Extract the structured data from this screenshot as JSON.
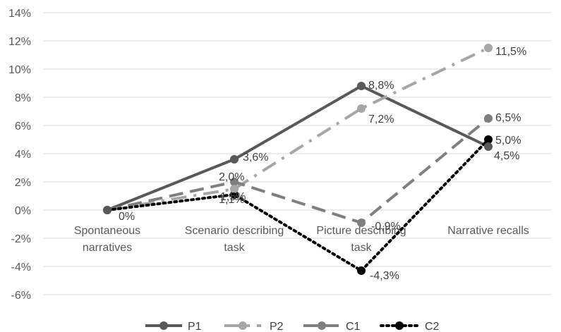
{
  "chart_data": {
    "type": "line",
    "categories": [
      [
        "Spontaneous",
        "narratives"
      ],
      [
        "Scenario describing",
        "task"
      ],
      [
        "Picture describing",
        "task"
      ],
      [
        "Narrative recalls"
      ]
    ],
    "y_ticks": [
      "14%",
      "12%",
      "10%",
      "8%",
      "6%",
      "4%",
      "2%",
      "0%",
      "-2%",
      "-4%",
      "-6%"
    ],
    "ylim": [
      -6,
      14
    ],
    "grid": true,
    "legend_position": "bottom",
    "series": [
      {
        "name": "P1",
        "values": [
          0,
          3.6,
          8.8,
          4.5
        ],
        "labels": [
          "0%",
          "3,6%",
          "8,8%",
          "4,5%"
        ],
        "color": "#595959",
        "style": "solid"
      },
      {
        "name": "P2",
        "values": [
          0,
          1.5,
          7.2,
          11.5
        ],
        "labels": [
          "",
          "1,5%",
          "7,2%",
          "11,5%"
        ],
        "color": "#a6a6a6",
        "style": "dashdot"
      },
      {
        "name": "C1",
        "values": [
          0,
          2.0,
          -0.9,
          6.5
        ],
        "labels": [
          "",
          "2,0%",
          "-0,9%",
          "6,5%"
        ],
        "color": "#7f7f7f",
        "style": "dash"
      },
      {
        "name": "C2",
        "values": [
          0,
          1.1,
          -4.3,
          5.0
        ],
        "labels": [
          "",
          "1,1%",
          "-4,3%",
          "5,0%"
        ],
        "color": "#000000",
        "style": "dot"
      }
    ]
  }
}
